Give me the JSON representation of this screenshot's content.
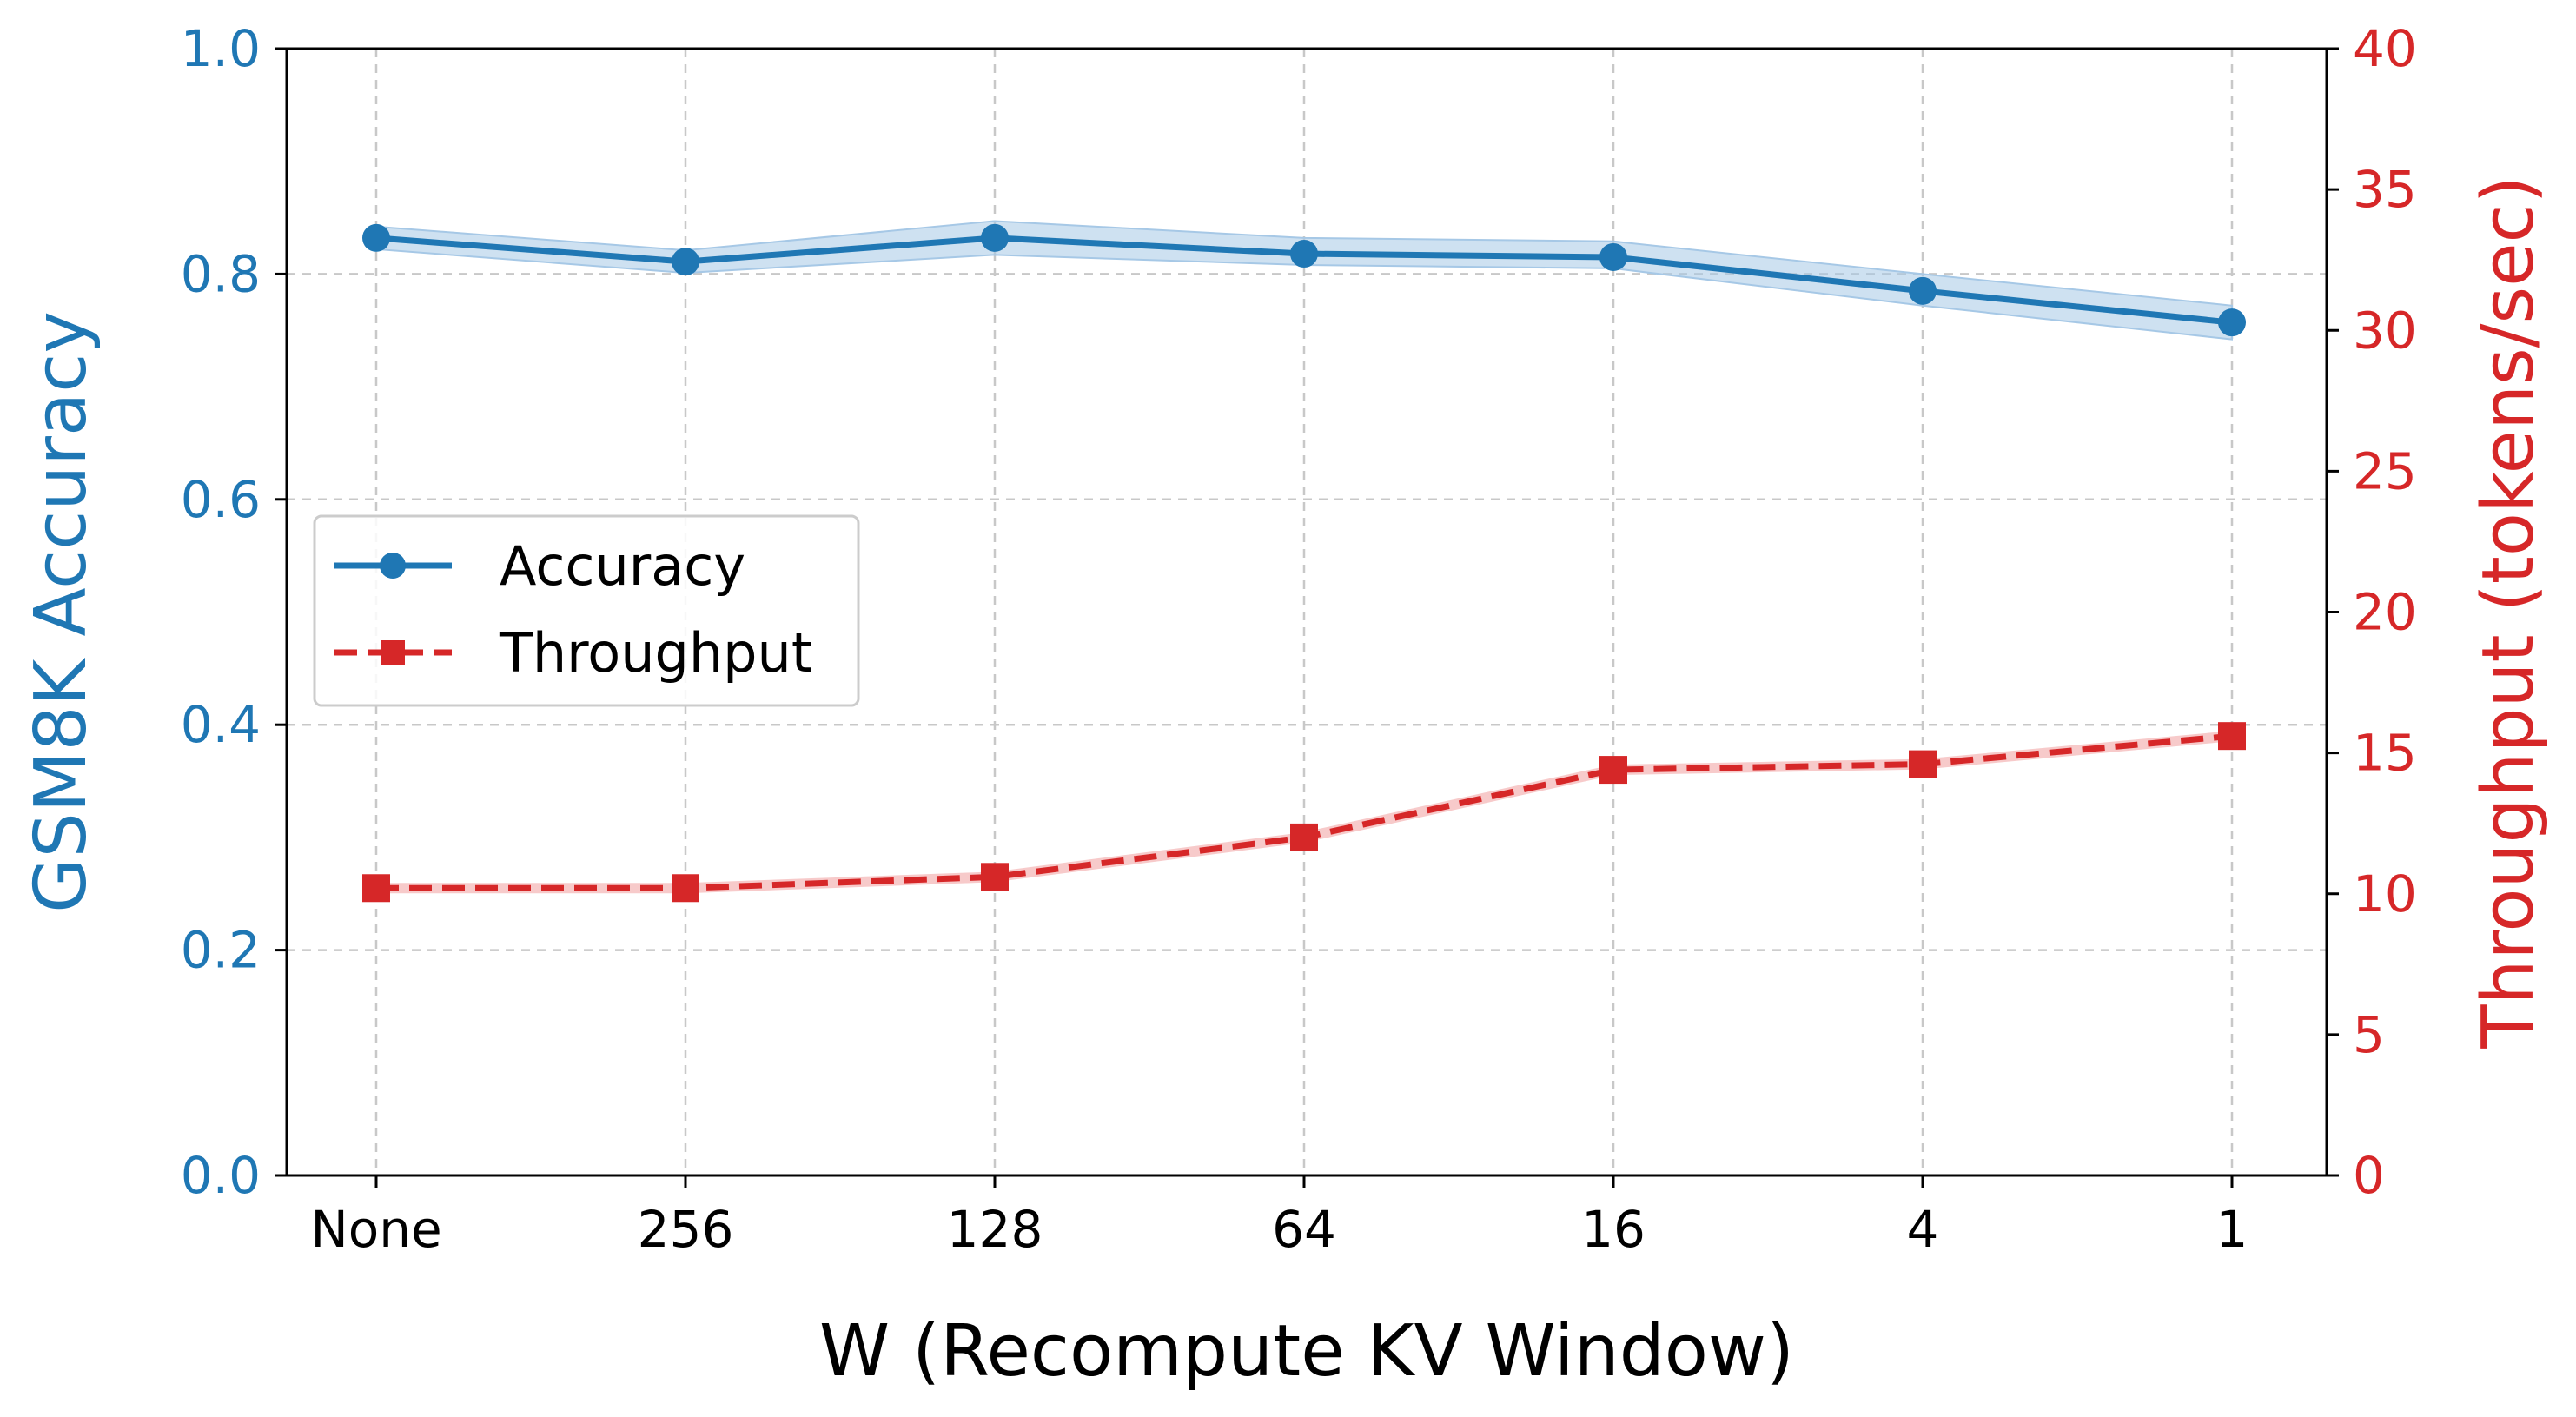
{
  "colors": {
    "accuracy": "#1f77b4",
    "throughput": "#d62728",
    "band": "#a6c8e6",
    "grid": "#c8c8c8",
    "axis": "#000000"
  },
  "chart_data": {
    "type": "line",
    "x": [
      "None",
      "256",
      "128",
      "64",
      "16",
      "4",
      "1"
    ],
    "xlabel": "W (Recompute KV Window)",
    "ylabel": "GSM8K Accuracy",
    "y2label": "Throughput (tokens/sec)",
    "ylim": [
      0,
      1.0
    ],
    "y2lim": [
      0,
      40
    ],
    "yticks": [
      "0.0",
      "0.2",
      "0.4",
      "0.6",
      "0.8",
      "1.0"
    ],
    "y2ticks": [
      "0",
      "5",
      "10",
      "15",
      "20",
      "25",
      "30",
      "35",
      "40"
    ],
    "grid": true,
    "legend_position": "center-left",
    "series": [
      {
        "name": "Accuracy",
        "axis": "left",
        "marker": "circle",
        "style": "solid",
        "values": [
          0.832,
          0.811,
          0.832,
          0.818,
          0.815,
          0.785,
          0.757
        ],
        "band_lower": [
          0.822,
          0.801,
          0.817,
          0.808,
          0.805,
          0.772,
          0.742
        ],
        "band_upper": [
          0.842,
          0.821,
          0.847,
          0.832,
          0.829,
          0.8,
          0.772
        ]
      },
      {
        "name": "Throughput",
        "axis": "right",
        "marker": "square",
        "style": "dashed",
        "values": [
          10.2,
          10.2,
          10.6,
          12.0,
          14.4,
          14.6,
          15.6
        ]
      }
    ]
  }
}
